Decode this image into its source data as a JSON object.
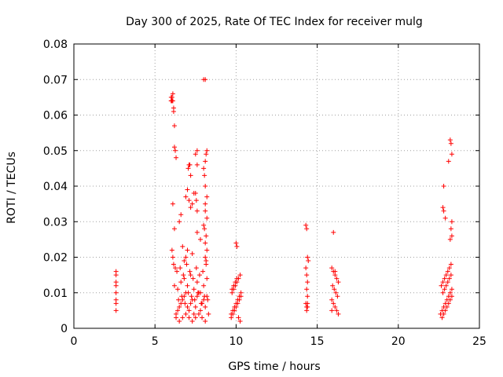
{
  "chart_data": {
    "type": "scatter",
    "title": "Day 300 of 2025, Rate Of TEC Index for receiver mulg",
    "xlabel": "GPS time / hours",
    "ylabel": "ROTI / TECUs",
    "xlim": [
      0,
      25
    ],
    "ylim": [
      0,
      0.08
    ],
    "xticks": [
      "0",
      "5",
      "10",
      "15",
      "20",
      "25"
    ],
    "yticks": [
      "0",
      "0.01",
      "0.02",
      "0.03",
      "0.04",
      "0.05",
      "0.06",
      "0.07",
      "0.08"
    ],
    "grid": true,
    "marker": "+",
    "color": "#ff0000",
    "series": [
      {
        "x": [
          2.6,
          2.6,
          2.6,
          2.6,
          2.6,
          2.6,
          2.6,
          2.6,
          6.0,
          6.0,
          6.0,
          6.05,
          6.05,
          6.1,
          6.1,
          6.15,
          6.15,
          6.2,
          6.2,
          6.25,
          6.3,
          6.1,
          6.2,
          6.05,
          6.1,
          6.15,
          6.25,
          6.3,
          6.4,
          6.5,
          6.6,
          6.7,
          6.8,
          6.9,
          7.0,
          7.1,
          7.2,
          7.3,
          7.4,
          7.5,
          7.6,
          7.7,
          7.8,
          7.9,
          8.0,
          8.1,
          8.2,
          8.3,
          6.2,
          6.4,
          6.6,
          6.8,
          7.0,
          7.2,
          7.4,
          7.6,
          7.8,
          8.0,
          8.2,
          6.3,
          6.5,
          6.7,
          6.9,
          7.1,
          7.3,
          7.5,
          7.7,
          7.9,
          8.1,
          6.35,
          6.55,
          6.75,
          6.95,
          7.15,
          7.35,
          7.55,
          7.75,
          7.95,
          8.15,
          6.45,
          6.65,
          6.85,
          7.05,
          7.25,
          7.45,
          7.65,
          7.85,
          8.05,
          8.25,
          6.9,
          7.0,
          7.1,
          7.2,
          7.3,
          7.4,
          6.5,
          6.6,
          7.6,
          7.8,
          8.0,
          8.1,
          8.2,
          8.15,
          8.05,
          8.1,
          8.2,
          8.1,
          8.15,
          7.05,
          7.1,
          7.15,
          7.2,
          6.9,
          7.0,
          7.3,
          7.5,
          7.6,
          7.6,
          6.7,
          6.8,
          8.1,
          8.0,
          8.2,
          8.15,
          8.1,
          8.0,
          8.05,
          8.1,
          8.2,
          8.1,
          7.5,
          7.55,
          7.6,
          9.7,
          9.8,
          9.9,
          10.0,
          10.1,
          10.2,
          10.3,
          9.75,
          9.85,
          9.95,
          10.05,
          10.15,
          10.25,
          9.7,
          9.8,
          9.9,
          10.0,
          10.1,
          10.2,
          10.3,
          9.75,
          9.85,
          9.95,
          10.05,
          10.15,
          10.25,
          10.0,
          10.05,
          14.3,
          14.35,
          14.4,
          14.45,
          14.3,
          14.35,
          14.4,
          14.35,
          14.4,
          14.3,
          14.35,
          14.4,
          14.35,
          14.4,
          15.9,
          16.0,
          16.1,
          16.2,
          16.3,
          15.95,
          16.05,
          16.15,
          16.25,
          15.9,
          16.0,
          16.1,
          16.2,
          16.3,
          16.0,
          16.1,
          15.9,
          22.6,
          22.7,
          22.8,
          22.9,
          23.0,
          23.1,
          23.2,
          23.3,
          22.65,
          22.75,
          22.85,
          22.95,
          23.05,
          23.15,
          23.25,
          22.7,
          22.8,
          22.9,
          23.0,
          23.1,
          23.2,
          23.3,
          22.75,
          22.85,
          22.95,
          23.05,
          23.15,
          23.25,
          23.2,
          23.25,
          23.3,
          23.3,
          23.25,
          23.1,
          22.8,
          22.75,
          22.8,
          22.9,
          23.3,
          23.2
        ],
        "y": [
          0.016,
          0.015,
          0.013,
          0.012,
          0.01,
          0.008,
          0.007,
          0.005,
          0.064,
          0.064,
          0.065,
          0.065,
          0.064,
          0.066,
          0.064,
          0.061,
          0.062,
          0.057,
          0.051,
          0.05,
          0.048,
          0.035,
          0.028,
          0.022,
          0.02,
          0.018,
          0.017,
          0.004,
          0.005,
          0.006,
          0.007,
          0.008,
          0.009,
          0.01,
          0.006,
          0.005,
          0.007,
          0.008,
          0.004,
          0.006,
          0.009,
          0.01,
          0.005,
          0.007,
          0.008,
          0.006,
          0.009,
          0.004,
          0.012,
          0.011,
          0.013,
          0.014,
          0.012,
          0.015,
          0.011,
          0.013,
          0.01,
          0.012,
          0.014,
          0.003,
          0.002,
          0.003,
          0.004,
          0.003,
          0.002,
          0.003,
          0.004,
          0.003,
          0.002,
          0.016,
          0.017,
          0.015,
          0.018,
          0.016,
          0.014,
          0.017,
          0.015,
          0.016,
          0.018,
          0.008,
          0.009,
          0.007,
          0.01,
          0.009,
          0.008,
          0.01,
          0.007,
          0.009,
          0.008,
          0.037,
          0.039,
          0.036,
          0.034,
          0.035,
          0.038,
          0.03,
          0.032,
          0.027,
          0.025,
          0.029,
          0.033,
          0.031,
          0.026,
          0.028,
          0.024,
          0.022,
          0.02,
          0.019,
          0.045,
          0.046,
          0.046,
          0.043,
          0.02,
          0.022,
          0.021,
          0.049,
          0.046,
          0.05,
          0.023,
          0.019,
          0.07,
          0.07,
          0.05,
          0.049,
          0.047,
          0.045,
          0.043,
          0.04,
          0.037,
          0.035,
          0.038,
          0.036,
          0.033,
          0.003,
          0.004,
          0.005,
          0.006,
          0.007,
          0.008,
          0.009,
          0.01,
          0.011,
          0.012,
          0.013,
          0.014,
          0.015,
          0.004,
          0.005,
          0.006,
          0.007,
          0.008,
          0.009,
          0.01,
          0.011,
          0.012,
          0.013,
          0.014,
          0.003,
          0.002,
          0.024,
          0.023,
          0.029,
          0.028,
          0.02,
          0.019,
          0.017,
          0.015,
          0.013,
          0.011,
          0.009,
          0.007,
          0.006,
          0.006,
          0.005,
          0.007,
          0.017,
          0.016,
          0.015,
          0.014,
          0.013,
          0.012,
          0.011,
          0.01,
          0.009,
          0.008,
          0.007,
          0.006,
          0.005,
          0.004,
          0.027,
          0.016,
          0.005,
          0.004,
          0.005,
          0.006,
          0.007,
          0.008,
          0.009,
          0.01,
          0.011,
          0.012,
          0.013,
          0.014,
          0.015,
          0.016,
          0.017,
          0.018,
          0.003,
          0.004,
          0.005,
          0.006,
          0.007,
          0.008,
          0.009,
          0.01,
          0.011,
          0.012,
          0.013,
          0.014,
          0.015,
          0.053,
          0.052,
          0.049,
          0.03,
          0.028,
          0.047,
          0.04,
          0.034,
          0.033,
          0.031,
          0.026,
          0.025
        ]
      }
    ]
  }
}
